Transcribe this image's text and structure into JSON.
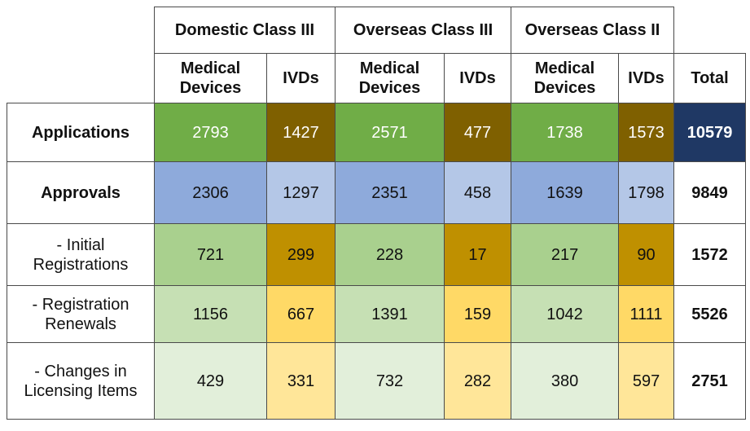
{
  "groups": {
    "domestic_iii": "Domestic Class III",
    "overseas_iii": "Overseas Class III",
    "overseas_ii": "Overseas Class II"
  },
  "subheaders": {
    "medical_devices": "Medical Devices",
    "ivds": "IVDs",
    "total": "Total"
  },
  "rows": [
    {
      "label": "Applications",
      "values": [
        "2793",
        "1427",
        "2571",
        "477",
        "1738",
        "1573"
      ],
      "total": "10579"
    },
    {
      "label": "Approvals",
      "values": [
        "2306",
        "1297",
        "2351",
        "458",
        "1639",
        "1798"
      ],
      "total": "9849"
    },
    {
      "label": "- Initial Registrations",
      "values": [
        "721",
        "299",
        "228",
        "17",
        "217",
        "90"
      ],
      "total": "1572"
    },
    {
      "label": "- Registration Renewals",
      "values": [
        "1156",
        "667",
        "1391",
        "159",
        "1042",
        "1111"
      ],
      "total": "5526"
    },
    {
      "label": "- Changes in Licensing Items",
      "values": [
        "429",
        "331",
        "732",
        "282",
        "380",
        "597"
      ],
      "total": "2751"
    }
  ],
  "colors": {
    "applications_medical": "#70ad47",
    "applications_ivd": "#7f6000",
    "applications_total": "#1f3864",
    "approvals_medical": "#8eaadb",
    "approvals_ivd": "#b4c7e7",
    "initial_medical": "#a9d08e",
    "initial_ivd": "#bf9000",
    "renewal_medical": "#c6e0b4",
    "renewal_ivd": "#ffd966",
    "changes_medical": "#e2efda",
    "changes_ivd": "#ffe699"
  }
}
